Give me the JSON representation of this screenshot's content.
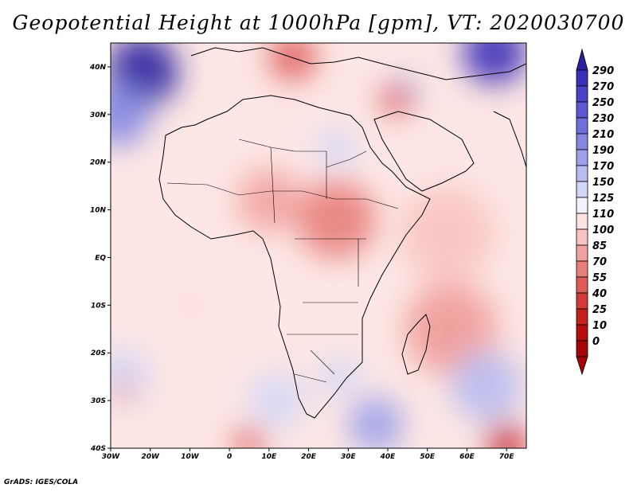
{
  "title": "Geopotential Height at 1000hPa [gpm], VT: 2020030700",
  "footer": "GrADS: IGES/COLA",
  "map": {
    "lon_range": [
      -30,
      75
    ],
    "lat_range": [
      -40,
      45
    ],
    "lat_ticks": [
      {
        "value": 40,
        "label": "40N"
      },
      {
        "value": 30,
        "label": "30N"
      },
      {
        "value": 20,
        "label": "20N"
      },
      {
        "value": 10,
        "label": "10N"
      },
      {
        "value": 0,
        "label": "EQ"
      },
      {
        "value": -10,
        "label": "10S"
      },
      {
        "value": -20,
        "label": "20S"
      },
      {
        "value": -30,
        "label": "30S"
      },
      {
        "value": -40,
        "label": "40S"
      }
    ],
    "lon_ticks": [
      {
        "value": -30,
        "label": "30W"
      },
      {
        "value": -20,
        "label": "20W"
      },
      {
        "value": -10,
        "label": "10W"
      },
      {
        "value": 0,
        "label": "0"
      },
      {
        "value": 10,
        "label": "10E"
      },
      {
        "value": 20,
        "label": "20E"
      },
      {
        "value": 30,
        "label": "30E"
      },
      {
        "value": 40,
        "label": "40E"
      },
      {
        "value": 50,
        "label": "50E"
      },
      {
        "value": 60,
        "label": "60E"
      },
      {
        "value": 70,
        "label": "70E"
      }
    ],
    "features": [
      {
        "lon": -22,
        "lat": 39,
        "r": 9,
        "value": 290
      },
      {
        "lon": 67,
        "lat": 43,
        "r": 8,
        "value": 270
      },
      {
        "lon": -28,
        "lat": 30,
        "r": 8,
        "value": 200
      },
      {
        "lon": 44,
        "lat": 35,
        "r": 4,
        "value": 150
      },
      {
        "lon": 16,
        "lat": 42,
        "r": 6,
        "value": 40
      },
      {
        "lon": 42,
        "lat": 33,
        "r": 4,
        "value": 40
      },
      {
        "lon": 27,
        "lat": 23,
        "r": 5,
        "value": 140
      },
      {
        "lon": 27,
        "lat": 8,
        "r": 10,
        "value": 55
      },
      {
        "lon": 10,
        "lat": 12,
        "r": 8,
        "value": 70
      },
      {
        "lon": 55,
        "lat": -15,
        "r": 5,
        "value": 40
      },
      {
        "lon": 56,
        "lat": -15,
        "r": 12,
        "value": 80
      },
      {
        "lon": 12,
        "lat": -30,
        "r": 7,
        "value": 140
      },
      {
        "lon": 37,
        "lat": -35,
        "r": 7,
        "value": 180
      },
      {
        "lon": 28,
        "lat": -25,
        "r": 5,
        "value": 140
      },
      {
        "lon": -27,
        "lat": -25,
        "r": 7,
        "value": 140
      },
      {
        "lon": -27,
        "lat": -28,
        "r": 3,
        "value": 80
      },
      {
        "lon": 65,
        "lat": -27,
        "r": 9,
        "value": 150
      },
      {
        "lon": 70,
        "lat": -39,
        "r": 5,
        "value": 10
      },
      {
        "lon": 5,
        "lat": -39,
        "r": 4,
        "value": 40
      },
      {
        "lon": -10,
        "lat": -10,
        "r": 8,
        "value": 100
      },
      {
        "lon": 55,
        "lat": 5,
        "r": 12,
        "value": 90
      }
    ]
  },
  "colorbar": {
    "levels": [
      "290",
      "270",
      "250",
      "230",
      "210",
      "190",
      "170",
      "150",
      "125",
      "110",
      "100",
      "85",
      "70",
      "55",
      "40",
      "25",
      "10",
      "0"
    ],
    "colors": [
      "#2a1fa0",
      "#3a2fb8",
      "#4a42c8",
      "#5a58d3",
      "#6d6fdc",
      "#8488e3",
      "#9ca2ea",
      "#b8bdf1",
      "#d3d7f7",
      "#f2f2ff",
      "#fde3e1",
      "#f8c4c1",
      "#f1a29f",
      "#e87f7b",
      "#de5b57",
      "#d23b38",
      "#c4201d",
      "#b50e0c",
      "#a50508"
    ]
  }
}
